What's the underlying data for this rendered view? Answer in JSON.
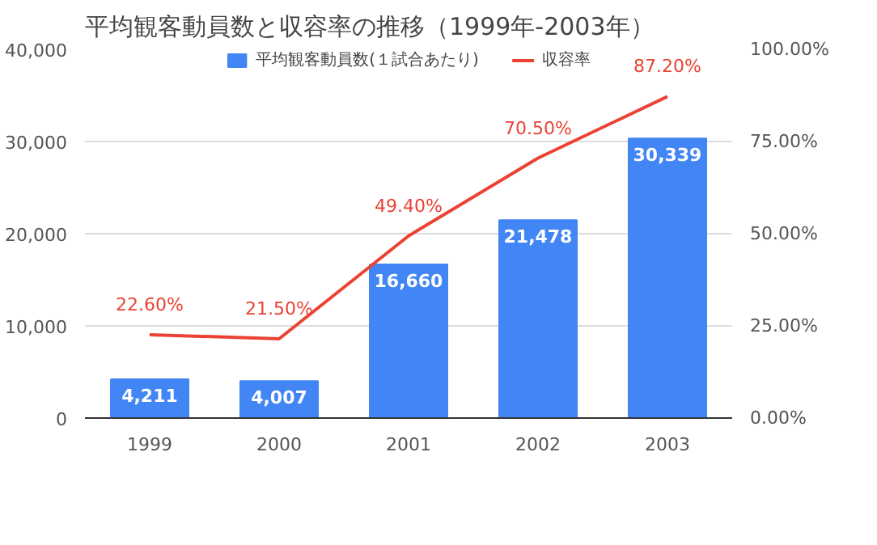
{
  "chart_data": {
    "type": "bar",
    "title": "平均観客動員数と収容率の推移（1999年-2003年）",
    "categories": [
      "1999",
      "2000",
      "2001",
      "2002",
      "2003"
    ],
    "series": [
      {
        "name": "平均観客動員数(１試合あたり)",
        "color": "#4285f4",
        "values": [
          4211,
          4007,
          16660,
          21478,
          30339
        ],
        "value_labels": [
          "4,211",
          "4,007",
          "16,660",
          "21,478",
          "30,339"
        ]
      },
      {
        "name": "収容率",
        "type": "line",
        "axis": "y2",
        "color": "#ea4335",
        "values": [
          22.6,
          21.5,
          49.4,
          70.5,
          87.2
        ],
        "value_labels": [
          "22.60%",
          "21.50%",
          "49.40%",
          "70.50%",
          "87.20%"
        ]
      }
    ],
    "ylim": [
      0,
      40000
    ],
    "yticks": [
      0,
      {
        "value": 10000,
        "label": "10,000"
      },
      {
        "value": 20000,
        "label": "20,000"
      },
      {
        "value": 30000,
        "label": "30,000"
      },
      {
        "value": 40000,
        "label": "40,000"
      }
    ],
    "y2lim": [
      0,
      100
    ],
    "y2ticks": [
      {
        "value": 0,
        "label": "0.00%"
      },
      {
        "value": 25,
        "label": "25.00%"
      },
      {
        "value": 50,
        "label": "50.00%"
      },
      {
        "value": 75,
        "label": "75.00%"
      },
      {
        "value": 100,
        "label": "100.00%"
      }
    ],
    "grid": "y",
    "legend": "top"
  }
}
